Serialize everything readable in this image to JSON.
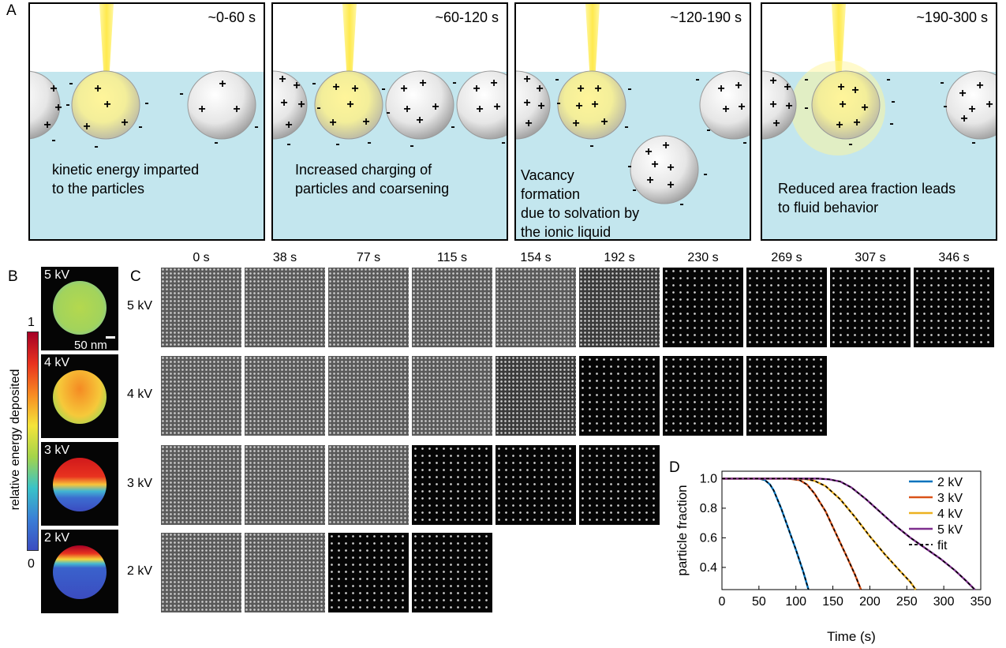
{
  "panel_labels": {
    "a": "A",
    "b": "B",
    "c": "C",
    "d": "D"
  },
  "panel_a": [
    {
      "time": "~0-60 s",
      "caption": [
        "kinetic energy imparted",
        "to the particles"
      ]
    },
    {
      "time": "~60-120 s",
      "caption": [
        "Increased charging of",
        "particles and coarsening"
      ]
    },
    {
      "time": "~120-190 s",
      "caption": [
        "Vacancy",
        "formation",
        "due to solvation by",
        "the ionic liquid"
      ]
    },
    {
      "time": "~190-300 s",
      "caption": [
        "Reduced area fraction leads",
        "to fluid behavior"
      ]
    }
  ],
  "panel_b": {
    "voltages": [
      "5 kV",
      "4 kV",
      "3 kV",
      "2 kV"
    ],
    "scale_bar": "50 nm",
    "colorbar_label": "relative energy deposited",
    "colorbar_max": "1",
    "colorbar_min": "0"
  },
  "panel_c": {
    "times": [
      "0 s",
      "38 s",
      "77 s",
      "115 s",
      "154 s",
      "192 s",
      "230 s",
      "269 s",
      "307 s",
      "346 s"
    ],
    "rows": [
      {
        "label": "5 kV",
        "count": 10
      },
      {
        "label": "4 kV",
        "count": 8
      },
      {
        "label": "3 kV",
        "count": 6
      },
      {
        "label": "2 kV",
        "count": 4
      }
    ]
  },
  "chart_data": {
    "type": "line",
    "xlabel": "Time (s)",
    "ylabel": "particle fraction",
    "xlim": [
      0,
      350
    ],
    "ylim": [
      0.25,
      1.05
    ],
    "xticks": [
      0,
      50,
      100,
      150,
      200,
      250,
      300,
      350
    ],
    "yticks": [
      0.4,
      0.6,
      0.8,
      1.0
    ],
    "legend_position": "top-right",
    "series": [
      {
        "name": "2 kV",
        "color": "#0072BD",
        "x": [
          0,
          50,
          58,
          65,
          70,
          80,
          90,
          100,
          110,
          117
        ],
        "y": [
          1.0,
          1.0,
          0.99,
          0.96,
          0.92,
          0.8,
          0.66,
          0.52,
          0.37,
          0.25
        ]
      },
      {
        "name": "3 kV",
        "color": "#D95319",
        "x": [
          0,
          90,
          105,
          115,
          125,
          140,
          155,
          170,
          180,
          188
        ],
        "y": [
          1.0,
          1.0,
          0.99,
          0.96,
          0.9,
          0.78,
          0.62,
          0.46,
          0.35,
          0.25
        ]
      },
      {
        "name": "4 kV",
        "color": "#EDB120",
        "x": [
          0,
          100,
          115,
          125,
          140,
          160,
          180,
          200,
          220,
          240,
          255,
          262
        ],
        "y": [
          1.0,
          1.0,
          0.995,
          0.985,
          0.95,
          0.86,
          0.74,
          0.61,
          0.49,
          0.38,
          0.3,
          0.25
        ]
      },
      {
        "name": "5 kV",
        "color": "#7E2F8E",
        "x": [
          0,
          130,
          145,
          160,
          175,
          195,
          215,
          235,
          255,
          275,
          295,
          315,
          330,
          342
        ],
        "y": [
          1.0,
          1.0,
          0.995,
          0.98,
          0.94,
          0.86,
          0.77,
          0.68,
          0.6,
          0.53,
          0.46,
          0.38,
          0.31,
          0.25
        ]
      }
    ],
    "fit_label": "fit"
  }
}
